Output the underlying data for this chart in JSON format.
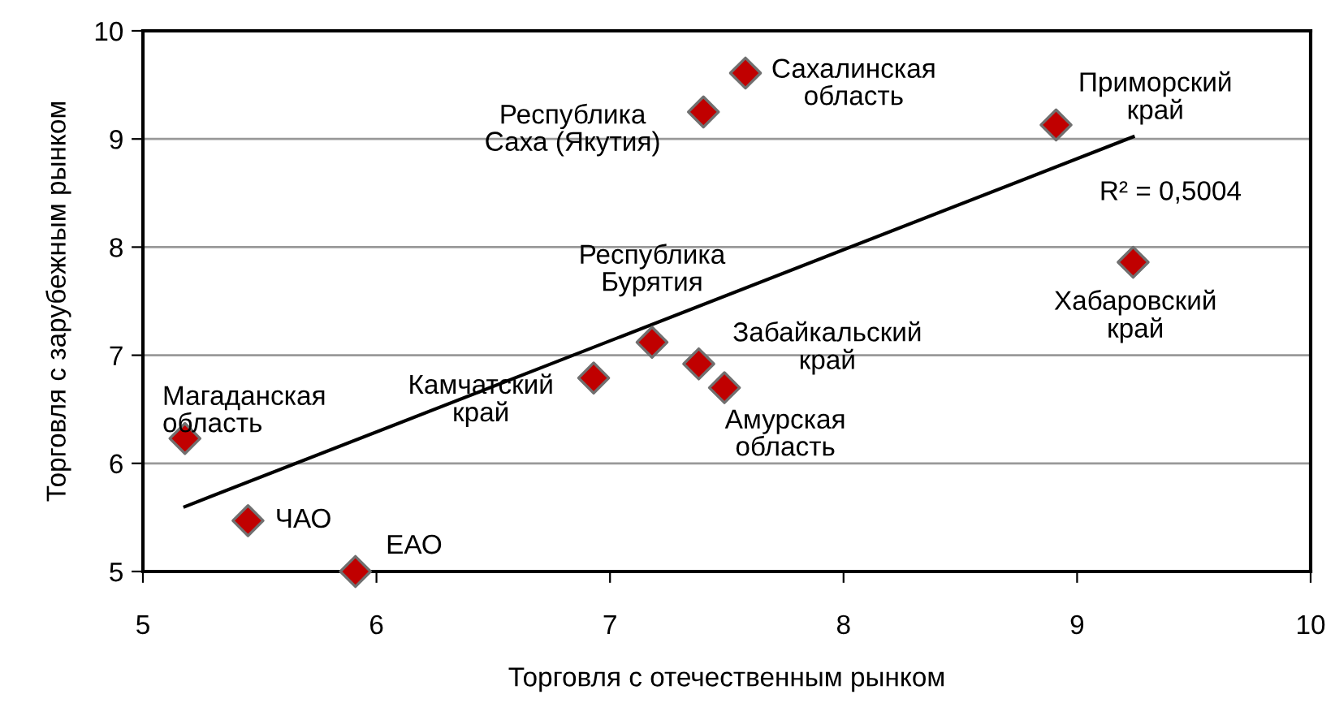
{
  "chart_data": {
    "type": "scatter",
    "xlabel": "Торговля с отечественным рынком",
    "ylabel": "Торговля с зарубежным рынком",
    "xlim": [
      5,
      10
    ],
    "xticks": [
      5,
      6,
      7,
      8,
      9,
      10
    ],
    "ylim": [
      5,
      10
    ],
    "yticks": [
      5,
      6,
      7,
      8,
      9,
      10
    ],
    "grid": "y",
    "marker": "diamond",
    "series": [
      {
        "color": "#c00000",
        "x": [
          5.18,
          5.45,
          5.91,
          6.93,
          7.18,
          7.38,
          7.49,
          7.4,
          7.58,
          8.91,
          9.24
        ],
        "values": [
          6.23,
          5.47,
          5.0,
          6.79,
          7.12,
          6.92,
          6.7,
          9.25,
          9.61,
          9.13,
          7.86
        ]
      },
      {
        "type": "line",
        "color": "#000000",
        "marker": "none",
        "x": [
          5.18,
          9.24
        ],
        "values": [
          5.6,
          9.02
        ]
      }
    ],
    "annotations": [
      {
        "text": "Магаданская\nобласть",
        "x": 5.18,
        "y": 6.23
      },
      {
        "text": "ЧАО",
        "x": 5.45,
        "y": 5.47
      },
      {
        "text": "ЕАО",
        "x": 5.91,
        "y": 5.0
      },
      {
        "text": "Камчатский\nкрай",
        "x": 6.93,
        "y": 6.79
      },
      {
        "text": "Республика\nБурятия",
        "x": 7.18,
        "y": 7.12
      },
      {
        "text": "Забайкальский\nкрай",
        "x": 7.38,
        "y": 6.92
      },
      {
        "text": "Амурская\nобласть",
        "x": 7.49,
        "y": 6.7
      },
      {
        "text": "Республика\nСаха (Якутия)",
        "x": 7.4,
        "y": 9.25
      },
      {
        "text": "Сахалинская\nобласть",
        "x": 7.58,
        "y": 9.61
      },
      {
        "text": "Приморский\nкрай",
        "x": 8.91,
        "y": 9.13
      },
      {
        "text": "Хабаровский\nкрай",
        "x": 9.24,
        "y": 7.86
      },
      "R² = 0,5004"
    ]
  }
}
